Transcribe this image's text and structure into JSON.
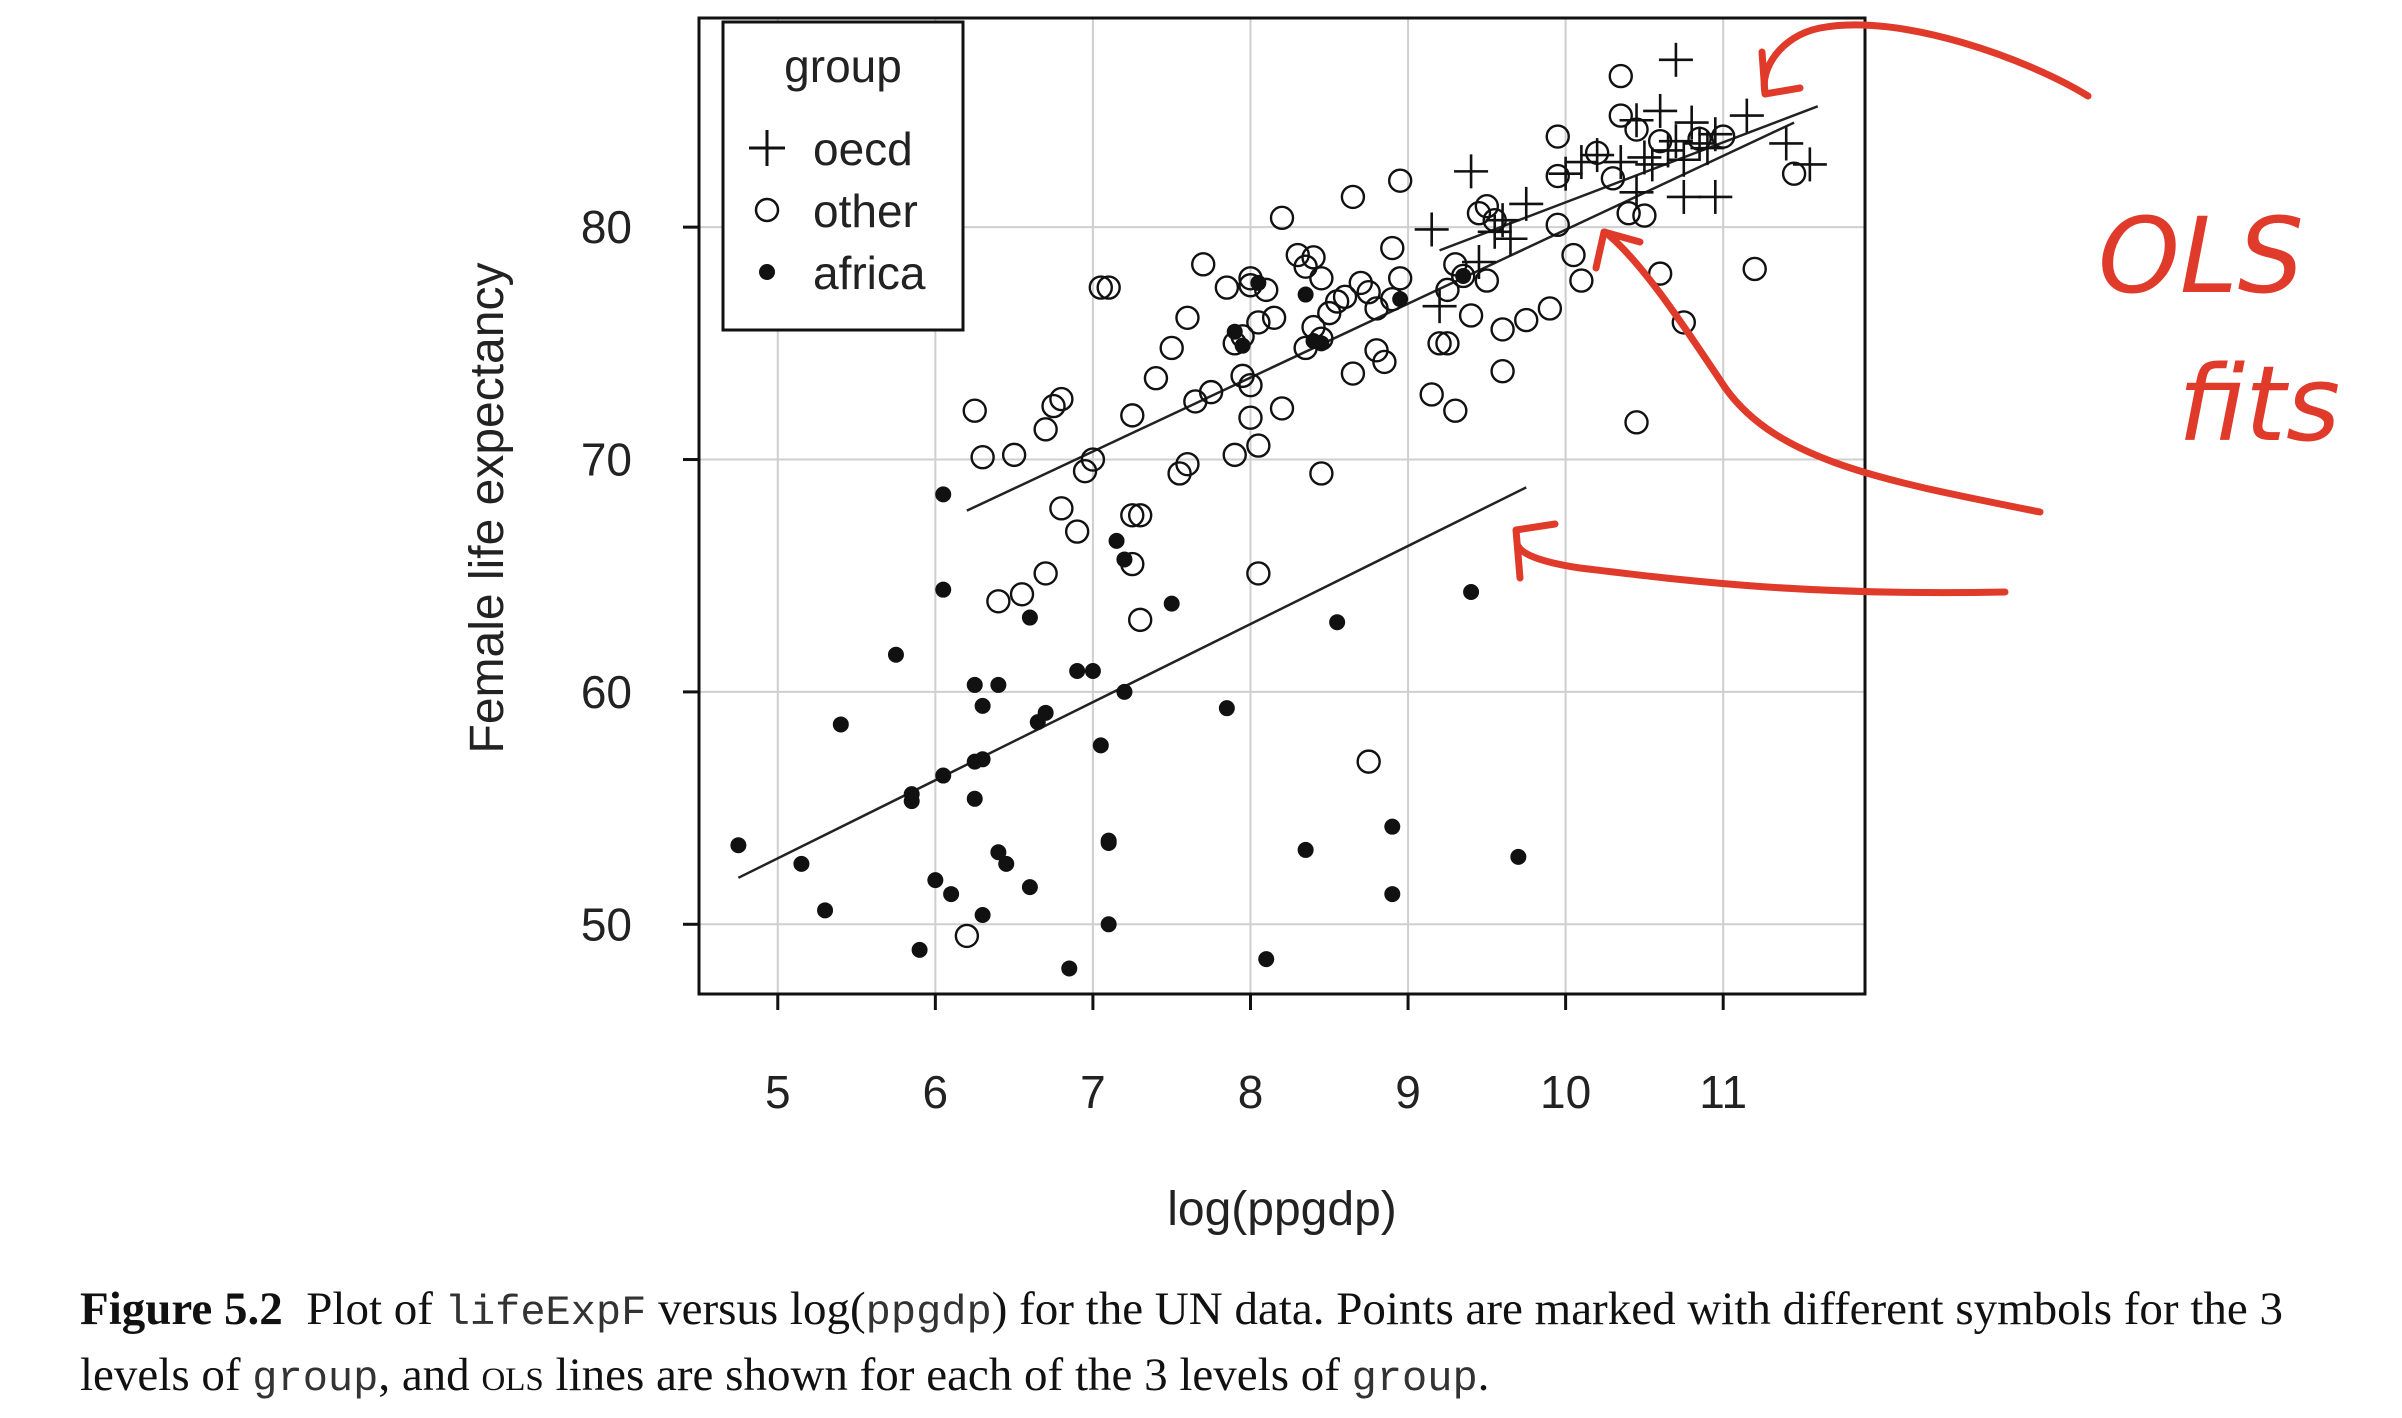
{
  "chart_data": {
    "type": "scatter",
    "xlabel": "log(ppgdp)",
    "ylabel": "Female life expectancy",
    "xlim": [
      4.5,
      11.9
    ],
    "ylim": [
      47,
      89
    ],
    "x_ticks": [
      5,
      6,
      7,
      8,
      9,
      10,
      11
    ],
    "y_ticks": [
      50,
      60,
      70,
      80
    ],
    "grid": true,
    "legend": {
      "title": "group",
      "placement": "top-left",
      "entries": [
        {
          "label": "oecd",
          "marker": "plus"
        },
        {
          "label": "other",
          "marker": "open-circle"
        },
        {
          "label": "africa",
          "marker": "filled-dot"
        }
      ]
    },
    "series": [
      {
        "name": "oecd",
        "marker": "plus",
        "points": [
          [
            10.7,
            87.2
          ],
          [
            10.45,
            84.6
          ],
          [
            10.6,
            85.0
          ],
          [
            10.8,
            84.5
          ],
          [
            11.15,
            84.8
          ],
          [
            10.9,
            83.4
          ],
          [
            10.5,
            83.0
          ],
          [
            10.7,
            83.7
          ],
          [
            10.75,
            82.9
          ],
          [
            10.65,
            83.3
          ],
          [
            10.1,
            82.8
          ],
          [
            10.2,
            83.1
          ],
          [
            10.35,
            82.8
          ],
          [
            10.55,
            82.7
          ],
          [
            11.4,
            83.6
          ],
          [
            11.55,
            82.7
          ],
          [
            10.95,
            84.0
          ],
          [
            9.4,
            82.4
          ],
          [
            9.75,
            81.0
          ],
          [
            9.6,
            80.3
          ],
          [
            9.55,
            79.8
          ],
          [
            9.65,
            79.5
          ],
          [
            9.45,
            78.5
          ],
          [
            9.2,
            76.6
          ],
          [
            10.75,
            81.3
          ],
          [
            10.95,
            81.3
          ],
          [
            10.0,
            82.3
          ],
          [
            9.15,
            79.9
          ],
          [
            10.45,
            81.5
          ],
          [
            10.85,
            83.6
          ]
        ]
      },
      {
        "name": "other",
        "marker": "open-circle",
        "points": [
          [
            10.35,
            86.5
          ],
          [
            10.35,
            84.8
          ],
          [
            9.95,
            83.9
          ],
          [
            10.2,
            83.2
          ],
          [
            10.3,
            82.1
          ],
          [
            10.45,
            84.2
          ],
          [
            10.6,
            83.7
          ],
          [
            10.85,
            83.8
          ],
          [
            11.0,
            83.9
          ],
          [
            11.45,
            82.3
          ],
          [
            11.2,
            78.2
          ],
          [
            10.6,
            78.0
          ],
          [
            10.75,
            75.9
          ],
          [
            10.45,
            71.6
          ],
          [
            10.1,
            77.7
          ],
          [
            10.05,
            78.8
          ],
          [
            9.95,
            80.1
          ],
          [
            10.4,
            80.6
          ],
          [
            10.5,
            80.5
          ],
          [
            9.95,
            82.2
          ],
          [
            9.9,
            76.5
          ],
          [
            9.75,
            76.0
          ],
          [
            9.6,
            75.6
          ],
          [
            9.6,
            73.8
          ],
          [
            9.5,
            80.9
          ],
          [
            9.55,
            80.3
          ],
          [
            9.45,
            80.6
          ],
          [
            9.3,
            78.4
          ],
          [
            9.35,
            77.9
          ],
          [
            9.25,
            77.3
          ],
          [
            9.5,
            77.7
          ],
          [
            9.4,
            76.2
          ],
          [
            9.2,
            75.0
          ],
          [
            9.25,
            75.0
          ],
          [
            9.3,
            72.1
          ],
          [
            9.15,
            72.8
          ],
          [
            8.95,
            82.0
          ],
          [
            8.9,
            79.1
          ],
          [
            8.95,
            77.8
          ],
          [
            8.9,
            76.9
          ],
          [
            8.8,
            76.5
          ],
          [
            8.75,
            77.2
          ],
          [
            8.7,
            77.6
          ],
          [
            8.65,
            81.3
          ],
          [
            8.6,
            77.0
          ],
          [
            8.55,
            76.8
          ],
          [
            8.5,
            76.3
          ],
          [
            8.45,
            75.2
          ],
          [
            8.4,
            75.7
          ],
          [
            8.35,
            74.8
          ],
          [
            8.8,
            74.7
          ],
          [
            8.85,
            74.2
          ],
          [
            8.65,
            73.7
          ],
          [
            8.3,
            78.8
          ],
          [
            8.2,
            80.4
          ],
          [
            8.4,
            78.7
          ],
          [
            8.45,
            77.8
          ],
          [
            8.35,
            78.3
          ],
          [
            8.1,
            77.3
          ],
          [
            8.15,
            76.1
          ],
          [
            8.05,
            75.9
          ],
          [
            7.9,
            75.0
          ],
          [
            7.95,
            75.3
          ],
          [
            7.85,
            77.4
          ],
          [
            7.7,
            78.4
          ],
          [
            8.0,
            77.5
          ],
          [
            8.0,
            77.8
          ],
          [
            7.6,
            76.1
          ],
          [
            7.5,
            74.8
          ],
          [
            7.4,
            73.5
          ],
          [
            7.25,
            71.9
          ],
          [
            7.65,
            72.5
          ],
          [
            7.75,
            72.9
          ],
          [
            7.95,
            73.6
          ],
          [
            8.0,
            73.2
          ],
          [
            8.0,
            71.8
          ],
          [
            8.2,
            72.2
          ],
          [
            8.05,
            70.6
          ],
          [
            7.9,
            70.2
          ],
          [
            7.6,
            69.8
          ],
          [
            7.55,
            69.4
          ],
          [
            8.45,
            69.4
          ],
          [
            7.05,
            77.4
          ],
          [
            7.1,
            77.4
          ],
          [
            6.8,
            72.6
          ],
          [
            6.75,
            72.3
          ],
          [
            6.7,
            71.3
          ],
          [
            6.25,
            72.1
          ],
          [
            6.3,
            70.1
          ],
          [
            6.5,
            70.2
          ],
          [
            6.95,
            69.5
          ],
          [
            7.0,
            70.0
          ],
          [
            6.8,
            67.9
          ],
          [
            6.9,
            66.9
          ],
          [
            7.25,
            67.6
          ],
          [
            7.3,
            67.6
          ],
          [
            7.25,
            65.5
          ],
          [
            6.7,
            65.1
          ],
          [
            6.55,
            64.2
          ],
          [
            6.4,
            63.9
          ],
          [
            7.3,
            63.1
          ],
          [
            8.05,
            65.1
          ],
          [
            8.75,
            57.0
          ],
          [
            6.2,
            49.5
          ]
        ]
      },
      {
        "name": "africa",
        "marker": "filled-dot",
        "points": [
          [
            4.75,
            53.4
          ],
          [
            5.15,
            52.6
          ],
          [
            5.3,
            50.6
          ],
          [
            5.4,
            58.6
          ],
          [
            5.75,
            61.6
          ],
          [
            5.85,
            55.6
          ],
          [
            5.85,
            55.3
          ],
          [
            5.9,
            48.9
          ],
          [
            6.05,
            68.5
          ],
          [
            6.05,
            64.4
          ],
          [
            6.05,
            56.4
          ],
          [
            6.0,
            51.9
          ],
          [
            6.1,
            51.3
          ],
          [
            6.25,
            60.3
          ],
          [
            6.3,
            59.4
          ],
          [
            6.4,
            60.3
          ],
          [
            6.3,
            57.1
          ],
          [
            6.25,
            57.0
          ],
          [
            6.25,
            55.4
          ],
          [
            6.4,
            53.1
          ],
          [
            6.45,
            52.6
          ],
          [
            6.3,
            50.4
          ],
          [
            6.6,
            51.6
          ],
          [
            6.6,
            63.2
          ],
          [
            6.65,
            58.7
          ],
          [
            6.7,
            59.1
          ],
          [
            6.9,
            60.9
          ],
          [
            7.0,
            60.9
          ],
          [
            7.1,
            53.5
          ],
          [
            7.1,
            53.6
          ],
          [
            7.05,
            57.7
          ],
          [
            7.2,
            60.0
          ],
          [
            7.1,
            50.0
          ],
          [
            7.15,
            66.5
          ],
          [
            7.2,
            65.7
          ],
          [
            7.5,
            63.8
          ],
          [
            6.85,
            48.1
          ],
          [
            7.85,
            59.3
          ],
          [
            7.9,
            75.5
          ],
          [
            7.95,
            74.9
          ],
          [
            8.05,
            77.6
          ],
          [
            8.1,
            48.5
          ],
          [
            8.35,
            77.1
          ],
          [
            8.4,
            75.1
          ],
          [
            8.45,
            75.0
          ],
          [
            8.35,
            53.2
          ],
          [
            8.55,
            63.0
          ],
          [
            8.9,
            54.2
          ],
          [
            8.9,
            51.3
          ],
          [
            8.95,
            76.9
          ],
          [
            9.35,
            77.9
          ],
          [
            9.4,
            64.3
          ],
          [
            9.7,
            52.9
          ]
        ]
      }
    ],
    "fit_lines": [
      {
        "group": "oecd",
        "x": [
          9.2,
          11.6
        ],
        "y": [
          79.0,
          85.2
        ]
      },
      {
        "group": "other",
        "x": [
          6.2,
          11.45
        ],
        "y": [
          67.8,
          84.5
        ]
      },
      {
        "group": "africa",
        "x": [
          4.75,
          9.75
        ],
        "y": [
          52.0,
          68.8
        ]
      }
    ]
  },
  "caption": {
    "label": "Figure 5.2",
    "t1": "Plot of ",
    "code1": "lifeExpF",
    "t2": " versus log(",
    "code2": "ppgdp",
    "t3": ") for the UN data. Points are marked with different symbols for the 3 levels of ",
    "code3": "group",
    "t4": ", and ",
    "sc": "ols",
    "t5": " lines are shown for each of the 3 levels of ",
    "code4": "group",
    "t6": "."
  },
  "annotation": {
    "line1": "OLS",
    "line2": "fits",
    "color": "#e03a2a"
  }
}
